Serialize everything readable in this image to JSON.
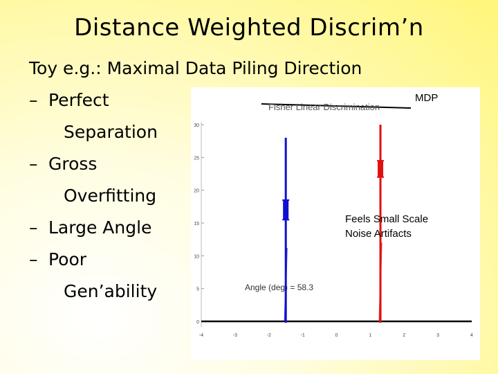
{
  "slide": {
    "title": "Distance Weighted Discrim’n",
    "subtitle": "Toy e.g.:  Maximal Data Piling Direction",
    "bullets": [
      {
        "dash": "–",
        "text": "Perfect"
      },
      {
        "dash": "",
        "text": "Separation"
      },
      {
        "dash": "–",
        "text": "Gross"
      },
      {
        "dash": "",
        "text": "Overfitting"
      },
      {
        "dash": "–",
        "text": "Large Angle"
      },
      {
        "dash": "–",
        "text": "Poor"
      },
      {
        "dash": "",
        "text": "Gen’ability"
      }
    ]
  },
  "annotations": {
    "mdp": "MDP",
    "noise_line1": "Feels Small Scale",
    "noise_line2": "Noise Artifacts"
  },
  "figure": {
    "legend_text": "Fisher Linear Discrimination",
    "angle_label": "Angle (deg) = 58.3"
  },
  "chart_data": {
    "type": "line",
    "xlim": [
      -4,
      4
    ],
    "ylim": [
      0,
      30
    ],
    "x_ticks": [
      -4,
      -3,
      -2,
      -1,
      0,
      1,
      2,
      3,
      4
    ],
    "y_ticks": [
      0,
      5,
      10,
      15,
      20,
      25,
      30
    ],
    "grid": false,
    "series": [
      {
        "color": "#1010d0",
        "x": -1.5,
        "peak": 28,
        "cluster": [
          15.5,
          18.5
        ]
      },
      {
        "color": "#e01010",
        "x": 1.3,
        "peak": 30,
        "cluster": [
          22,
          24.5
        ]
      }
    ],
    "baseline": 0
  },
  "colors": {
    "blue": "#1010d0",
    "red": "#e01010",
    "axis": "#000000"
  }
}
